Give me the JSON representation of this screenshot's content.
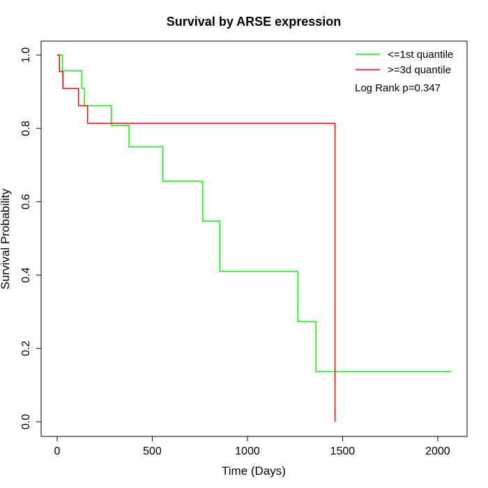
{
  "chart_data": {
    "type": "line",
    "title": "Survival by ARSE expression",
    "xlabel": "Time (Days)",
    "ylabel": "Survival Probability",
    "xlim": [
      0,
      2070
    ],
    "ylim": [
      0,
      1
    ],
    "xticks": [
      0,
      500,
      1000,
      1500,
      2000
    ],
    "xtick_labels": [
      "0",
      "500",
      "1000",
      "1500",
      "2000"
    ],
    "yticks": [
      0.0,
      0.2,
      0.4,
      0.6,
      0.8,
      1.0
    ],
    "ytick_labels": [
      "0.0",
      "0.2",
      "0.4",
      "0.6",
      "0.8",
      "1.0"
    ],
    "grid": false,
    "legend_position": "top-right",
    "annotation": "Log Rank p=0.347",
    "series": [
      {
        "name": "<=1st quantile",
        "color": "#00ff00",
        "step": true,
        "x": [
          0,
          28,
          130,
          143,
          285,
          378,
          555,
          765,
          855,
          1265,
          1360,
          2070
        ],
        "y": [
          1.0,
          0.957,
          0.909,
          0.862,
          0.808,
          0.75,
          0.656,
          0.547,
          0.41,
          0.273,
          0.137,
          0.137
        ]
      },
      {
        "name": ">=3d quantile",
        "color": "#ff0000",
        "step": true,
        "x": [
          0,
          12,
          30,
          112,
          160,
          1460
        ],
        "y": [
          1.0,
          0.955,
          0.909,
          0.862,
          0.814,
          0.0
        ]
      }
    ]
  }
}
